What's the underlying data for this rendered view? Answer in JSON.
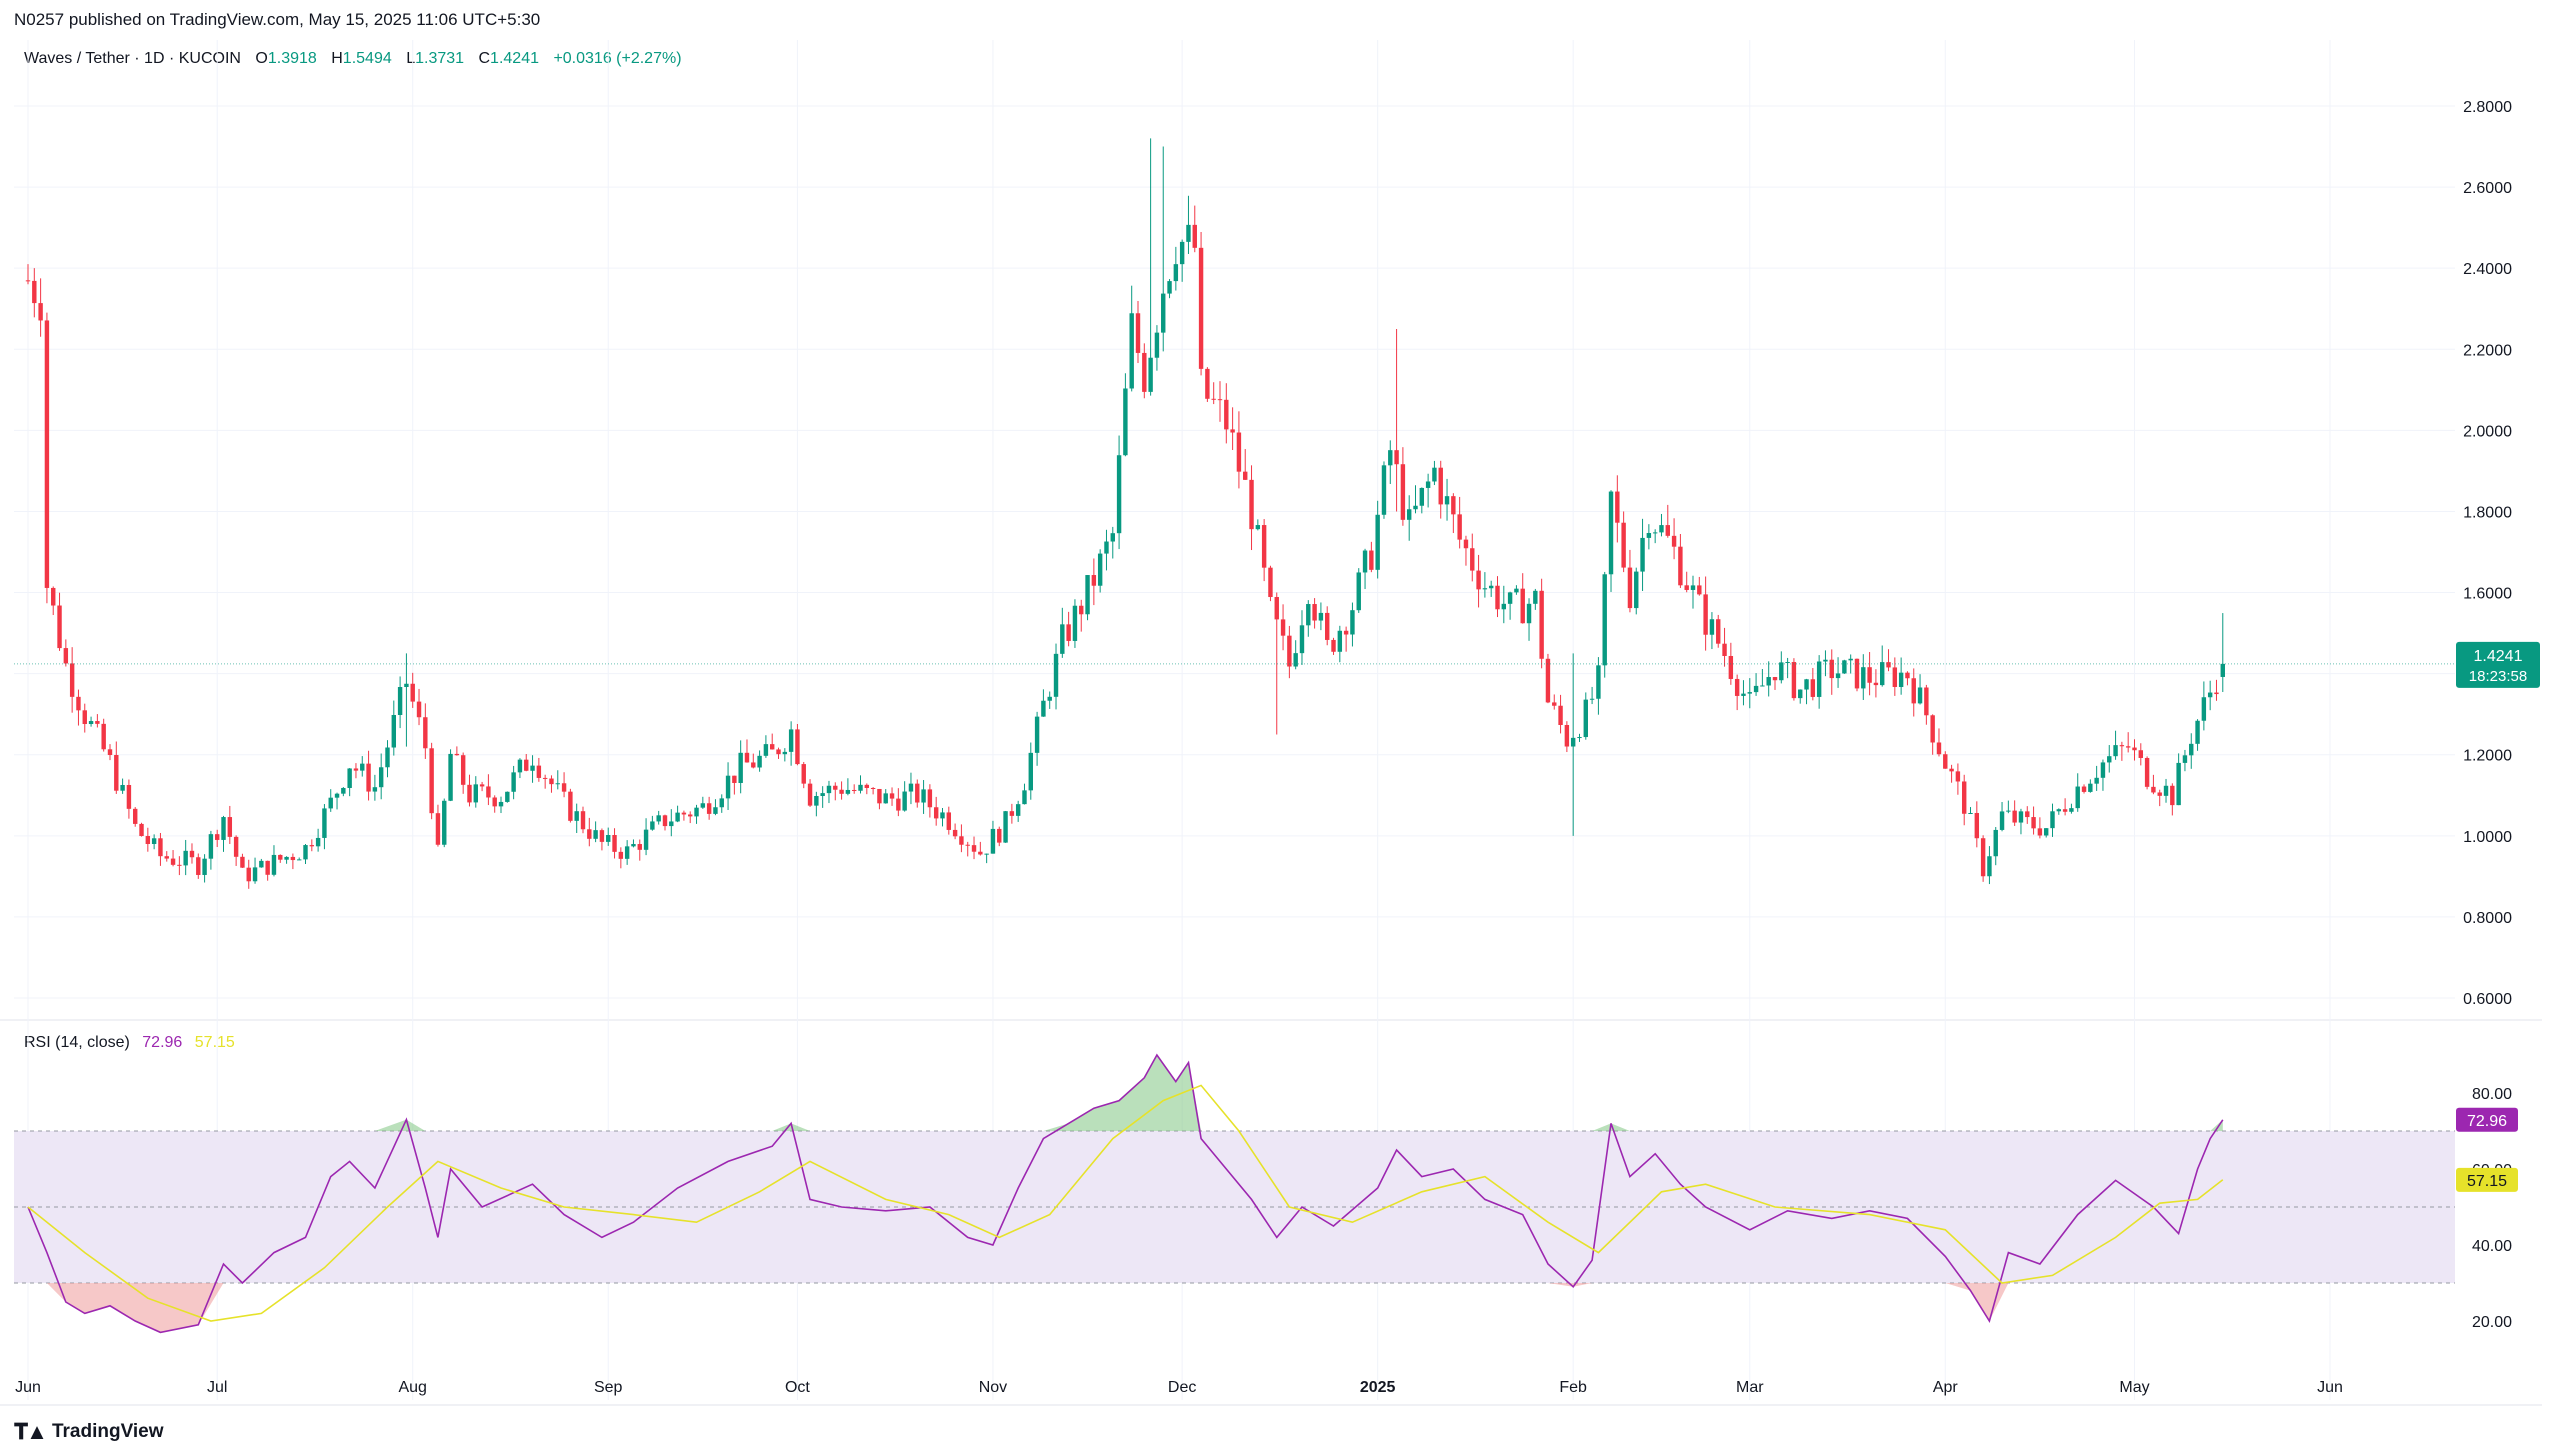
{
  "header": {
    "published": "N0257 published on TradingView.com, May 15, 2025 11:06 UTC+5:30"
  },
  "legend": {
    "symbol": "Waves / Tether · 1D · KUCOIN",
    "o_label": "O",
    "o_value": "1.3918",
    "h_label": "H",
    "h_value": "1.5494",
    "l_label": "L",
    "l_value": "1.3731",
    "c_label": "C",
    "c_value": "1.4241",
    "change": "+0.0316 (+2.27%)"
  },
  "rsi_legend": {
    "label": "RSI (14, close)",
    "rsi_value": "72.96",
    "ma_value": "57.15"
  },
  "footer": {
    "brand": "TradingView",
    "logo_icon": "tradingview-logo-icon"
  },
  "colors": {
    "up": "#089981",
    "down": "#f23645",
    "rsi": "#9c27b0",
    "rsi_ma": "#e6e22a",
    "band": "#ede7f6",
    "price_tag": "#089981"
  },
  "chart_data": [
    {
      "type": "candlestick",
      "title": "Waves / Tether · 1D · KUCOIN",
      "x_ticks": [
        "Jun",
        "Jul",
        "Aug",
        "Sep",
        "Oct",
        "Nov",
        "Dec",
        "2025",
        "Feb",
        "Mar",
        "Apr",
        "May",
        "Jun"
      ],
      "y_ticks": [
        "0.6000",
        "0.8000",
        "1.0000",
        "1.2000",
        "1.4000",
        "1.6000",
        "1.8000",
        "2.0000",
        "2.2000",
        "2.4000",
        "2.6000",
        "2.8000"
      ],
      "ylim": [
        0.6,
        2.8
      ],
      "last_price": "1.4241",
      "countdown": "18:23:58",
      "close_path": [
        [
          "2024-06-01",
          2.37
        ],
        [
          "2024-06-03",
          2.33
        ],
        [
          "2024-06-04",
          1.62
        ],
        [
          "2024-06-07",
          1.42
        ],
        [
          "2024-06-10",
          1.3
        ],
        [
          "2024-06-14",
          1.18
        ],
        [
          "2024-06-18",
          1.02
        ],
        [
          "2024-06-22",
          0.95
        ],
        [
          "2024-06-28",
          0.93
        ],
        [
          "2024-07-02",
          1.05
        ],
        [
          "2024-07-05",
          0.9
        ],
        [
          "2024-07-08",
          0.92
        ],
        [
          "2024-07-15",
          0.97
        ],
        [
          "2024-07-19",
          1.08
        ],
        [
          "2024-07-22",
          1.18
        ],
        [
          "2024-07-26",
          1.12
        ],
        [
          "2024-07-31",
          1.38
        ],
        [
          "2024-08-03",
          1.22
        ],
        [
          "2024-08-05",
          0.95
        ],
        [
          "2024-08-07",
          1.2
        ],
        [
          "2024-08-10",
          1.1
        ],
        [
          "2024-08-15",
          1.1
        ],
        [
          "2024-08-20",
          1.2
        ],
        [
          "2024-08-25",
          1.08
        ],
        [
          "2024-08-31",
          0.98
        ],
        [
          "2024-09-04",
          0.96
        ],
        [
          "2024-09-10",
          1.04
        ],
        [
          "2024-09-16",
          1.07
        ],
        [
          "2024-09-22",
          1.17
        ],
        [
          "2024-09-27",
          1.2
        ],
        [
          "2024-09-30",
          1.26
        ],
        [
          "2024-10-03",
          1.1
        ],
        [
          "2024-10-08",
          1.12
        ],
        [
          "2024-10-15",
          1.09
        ],
        [
          "2024-10-20",
          1.1
        ],
        [
          "2024-10-25",
          1.04
        ],
        [
          "2024-10-30",
          0.96
        ],
        [
          "2024-11-03",
          1.03
        ],
        [
          "2024-11-06",
          1.14
        ],
        [
          "2024-11-09",
          1.32
        ],
        [
          "2024-11-12",
          1.48
        ],
        [
          "2024-11-16",
          1.6
        ],
        [
          "2024-11-20",
          1.74
        ],
        [
          "2024-11-23",
          2.25
        ],
        [
          "2024-11-25",
          2.14
        ],
        [
          "2024-11-28",
          2.36
        ],
        [
          "2024-11-30",
          2.47
        ],
        [
          "2024-12-03",
          2.45
        ],
        [
          "2024-12-04",
          2.1
        ],
        [
          "2024-12-08",
          2.02
        ],
        [
          "2024-12-12",
          1.8
        ],
        [
          "2024-12-15",
          1.55
        ],
        [
          "2024-12-18",
          1.42
        ],
        [
          "2024-12-21",
          1.62
        ],
        [
          "2024-12-24",
          1.46
        ],
        [
          "2024-12-28",
          1.57
        ],
        [
          "2024-12-31",
          1.7
        ],
        [
          "2025-01-03",
          1.95
        ],
        [
          "2025-01-06",
          1.76
        ],
        [
          "2025-01-10",
          1.9
        ],
        [
          "2025-01-14",
          1.73
        ],
        [
          "2025-01-18",
          1.62
        ],
        [
          "2025-01-22",
          1.56
        ],
        [
          "2025-01-26",
          1.58
        ],
        [
          "2025-01-28",
          1.33
        ],
        [
          "2025-01-31",
          1.24
        ],
        [
          "2025-02-03",
          1.3
        ],
        [
          "2025-02-05",
          1.38
        ],
        [
          "2025-02-07",
          1.83
        ],
        [
          "2025-02-10",
          1.6
        ],
        [
          "2025-02-13",
          1.8
        ],
        [
          "2025-02-17",
          1.7
        ],
        [
          "2025-02-21",
          1.56
        ],
        [
          "2025-02-25",
          1.45
        ],
        [
          "2025-03-01",
          1.32
        ],
        [
          "2025-03-05",
          1.42
        ],
        [
          "2025-03-09",
          1.36
        ],
        [
          "2025-03-14",
          1.41
        ],
        [
          "2025-03-20",
          1.39
        ],
        [
          "2025-03-26",
          1.4
        ],
        [
          "2025-03-29",
          1.3
        ],
        [
          "2025-04-01",
          1.18
        ],
        [
          "2025-04-04",
          1.08
        ],
        [
          "2025-04-07",
          0.92
        ],
        [
          "2025-04-10",
          1.05
        ],
        [
          "2025-04-14",
          1.03
        ],
        [
          "2025-04-17",
          1.02
        ],
        [
          "2025-04-22",
          1.12
        ],
        [
          "2025-04-26",
          1.18
        ],
        [
          "2025-04-30",
          1.22
        ],
        [
          "2025-05-03",
          1.15
        ],
        [
          "2025-05-07",
          1.1
        ],
        [
          "2025-05-10",
          1.25
        ],
        [
          "2025-05-12",
          1.32
        ],
        [
          "2025-05-14",
          1.39
        ],
        [
          "2025-05-15",
          1.4241
        ]
      ],
      "spikes": [
        [
          "2024-07-31",
          1.45,
          1.22
        ],
        [
          "2024-11-26",
          2.72,
          2.1
        ],
        [
          "2024-11-28",
          2.7,
          2.2
        ],
        [
          "2024-12-16",
          1.6,
          1.25
        ],
        [
          "2025-01-04",
          2.25,
          1.8
        ],
        [
          "2025-02-01",
          1.45,
          1.0
        ],
        [
          "2025-05-15",
          1.5494,
          1.3731
        ]
      ]
    },
    {
      "type": "line",
      "title": "RSI (14, close)",
      "y_ticks": [
        "20.00",
        "40.00",
        "60.00",
        "80.00"
      ],
      "ylim": [
        15,
        90
      ],
      "bands": [
        30,
        50,
        70
      ],
      "series": [
        {
          "name": "RSI",
          "points": [
            [
              "2024-06-01",
              50
            ],
            [
              "2024-06-04",
              38
            ],
            [
              "2024-06-07",
              25
            ],
            [
              "2024-06-10",
              22
            ],
            [
              "2024-06-14",
              24
            ],
            [
              "2024-06-18",
              20
            ],
            [
              "2024-06-22",
              17
            ],
            [
              "2024-06-28",
              19
            ],
            [
              "2024-07-02",
              35
            ],
            [
              "2024-07-05",
              30
            ],
            [
              "2024-07-10",
              38
            ],
            [
              "2024-07-15",
              42
            ],
            [
              "2024-07-19",
              58
            ],
            [
              "2024-07-22",
              62
            ],
            [
              "2024-07-26",
              55
            ],
            [
              "2024-07-31",
              73
            ],
            [
              "2024-08-03",
              55
            ],
            [
              "2024-08-05",
              42
            ],
            [
              "2024-08-07",
              60
            ],
            [
              "2024-08-12",
              50
            ],
            [
              "2024-08-20",
              56
            ],
            [
              "2024-08-25",
              48
            ],
            [
              "2024-08-31",
              42
            ],
            [
              "2024-09-05",
              46
            ],
            [
              "2024-09-12",
              55
            ],
            [
              "2024-09-20",
              62
            ],
            [
              "2024-09-27",
              66
            ],
            [
              "2024-09-30",
              72
            ],
            [
              "2024-10-03",
              52
            ],
            [
              "2024-10-08",
              50
            ],
            [
              "2024-10-15",
              49
            ],
            [
              "2024-10-22",
              50
            ],
            [
              "2024-10-28",
              42
            ],
            [
              "2024-11-01",
              40
            ],
            [
              "2024-11-05",
              55
            ],
            [
              "2024-11-09",
              68
            ],
            [
              "2024-11-13",
              72
            ],
            [
              "2024-11-17",
              76
            ],
            [
              "2024-11-21",
              78
            ],
            [
              "2024-11-25",
              84
            ],
            [
              "2024-11-27",
              90
            ],
            [
              "2024-11-30",
              83
            ],
            [
              "2024-12-02",
              88
            ],
            [
              "2024-12-04",
              68
            ],
            [
              "2024-12-08",
              60
            ],
            [
              "2024-12-12",
              52
            ],
            [
              "2024-12-16",
              42
            ],
            [
              "2024-12-20",
              50
            ],
            [
              "2024-12-25",
              45
            ],
            [
              "2025-01-01",
              55
            ],
            [
              "2025-01-04",
              65
            ],
            [
              "2025-01-08",
              58
            ],
            [
              "2025-01-13",
              60
            ],
            [
              "2025-01-18",
              52
            ],
            [
              "2025-01-24",
              48
            ],
            [
              "2025-01-28",
              35
            ],
            [
              "2025-02-01",
              29
            ],
            [
              "2025-02-04",
              36
            ],
            [
              "2025-02-07",
              72
            ],
            [
              "2025-02-10",
              58
            ],
            [
              "2025-02-14",
              64
            ],
            [
              "2025-02-18",
              56
            ],
            [
              "2025-02-22",
              50
            ],
            [
              "2025-03-01",
              44
            ],
            [
              "2025-03-07",
              49
            ],
            [
              "2025-03-14",
              47
            ],
            [
              "2025-03-20",
              49
            ],
            [
              "2025-03-26",
              47
            ],
            [
              "2025-04-01",
              37
            ],
            [
              "2025-04-05",
              28
            ],
            [
              "2025-04-08",
              20
            ],
            [
              "2025-04-11",
              38
            ],
            [
              "2025-04-16",
              35
            ],
            [
              "2025-04-22",
              48
            ],
            [
              "2025-04-28",
              57
            ],
            [
              "2025-05-04",
              50
            ],
            [
              "2025-05-08",
              43
            ],
            [
              "2025-05-11",
              60
            ],
            [
              "2025-05-13",
              68
            ],
            [
              "2025-05-15",
              72.96
            ]
          ]
        },
        {
          "name": "RSI-based MA",
          "points": [
            [
              "2024-06-01",
              50
            ],
            [
              "2024-06-10",
              38
            ],
            [
              "2024-06-20",
              26
            ],
            [
              "2024-06-30",
              20
            ],
            [
              "2024-07-08",
              22
            ],
            [
              "2024-07-18",
              34
            ],
            [
              "2024-07-28",
              50
            ],
            [
              "2024-08-05",
              62
            ],
            [
              "2024-08-15",
              55
            ],
            [
              "2024-08-25",
              50
            ],
            [
              "2024-09-05",
              48
            ],
            [
              "2024-09-15",
              46
            ],
            [
              "2024-09-25",
              54
            ],
            [
              "2024-10-03",
              62
            ],
            [
              "2024-10-15",
              52
            ],
            [
              "2024-10-25",
              48
            ],
            [
              "2024-11-02",
              42
            ],
            [
              "2024-11-10",
              48
            ],
            [
              "2024-11-20",
              68
            ],
            [
              "2024-11-28",
              78
            ],
            [
              "2024-12-04",
              82
            ],
            [
              "2024-12-10",
              70
            ],
            [
              "2024-12-18",
              50
            ],
            [
              "2024-12-28",
              46
            ],
            [
              "2025-01-08",
              54
            ],
            [
              "2025-01-18",
              58
            ],
            [
              "2025-01-28",
              46
            ],
            [
              "2025-02-05",
              38
            ],
            [
              "2025-02-15",
              54
            ],
            [
              "2025-02-22",
              56
            ],
            [
              "2025-03-05",
              50
            ],
            [
              "2025-03-20",
              48
            ],
            [
              "2025-04-01",
              44
            ],
            [
              "2025-04-10",
              30
            ],
            [
              "2025-04-18",
              32
            ],
            [
              "2025-04-28",
              42
            ],
            [
              "2025-05-05",
              51
            ],
            [
              "2025-05-11",
              52
            ],
            [
              "2025-05-15",
              57.15
            ]
          ]
        }
      ]
    }
  ]
}
